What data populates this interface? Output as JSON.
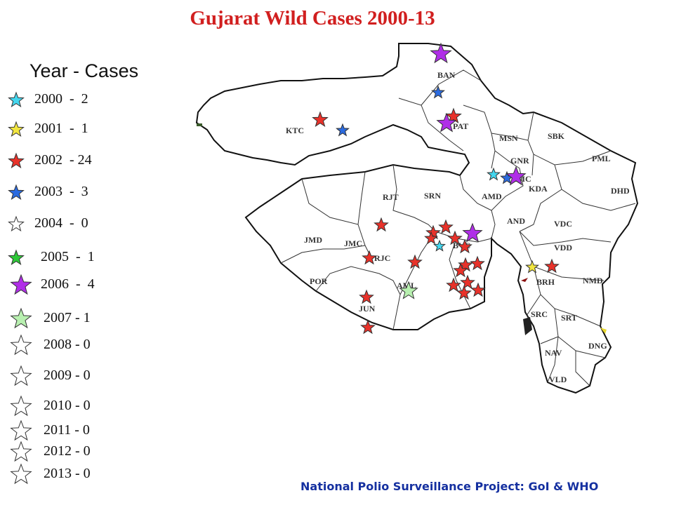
{
  "title": "Gujarat Wild Cases 2000-13",
  "legend": {
    "header": "Year -  Cases",
    "items": [
      {
        "label": "2000  -  2",
        "color": "#44d6ee",
        "size": "small"
      },
      {
        "label": "2001  -  1",
        "color": "#f2e640",
        "size": "small"
      },
      {
        "label": "2002  - 24",
        "color": "#e8322a",
        "size": "small"
      },
      {
        "label": "2003  -  3",
        "color": "#2b6be0",
        "size": "small"
      },
      {
        "label": "2004  -  0",
        "color": "none",
        "size": "small"
      },
      {
        "label": "2005  -  1",
        "color": "#2ec838",
        "size": "small"
      },
      {
        "label": "2006  -  4",
        "color": "#b02ee8",
        "size": "large"
      },
      {
        "label": "2007 - 1",
        "color": "#b8f0b0",
        "size": "large"
      },
      {
        "label": "2008 - 0",
        "color": "none",
        "size": "large"
      },
      {
        "label": "2009 - 0",
        "color": "none",
        "size": "large"
      },
      {
        "label": "2010 - 0",
        "color": "none",
        "size": "large"
      },
      {
        "label": "2011 - 0",
        "color": "none",
        "size": "large"
      },
      {
        "label": "2012 - 0",
        "color": "none",
        "size": "large"
      },
      {
        "label": "2013 - 0",
        "color": "none",
        "size": "large"
      }
    ]
  },
  "districts": [
    "BAN",
    "KTC",
    "PAT",
    "MSN",
    "SBK",
    "GNR",
    "PML",
    "AMC",
    "KDA",
    "DHD",
    "AMD",
    "RJT",
    "SRN",
    "AND",
    "VDC",
    "JMD",
    "JMC",
    "VDD",
    "RJC",
    "BVC",
    "POR",
    "AML",
    "BRH",
    "NMD",
    "JUN",
    "SRC",
    "SRT",
    "DNG",
    "NAV",
    "VLD"
  ],
  "footer": "National Polio Surveillance Project: GoI & WHO"
}
